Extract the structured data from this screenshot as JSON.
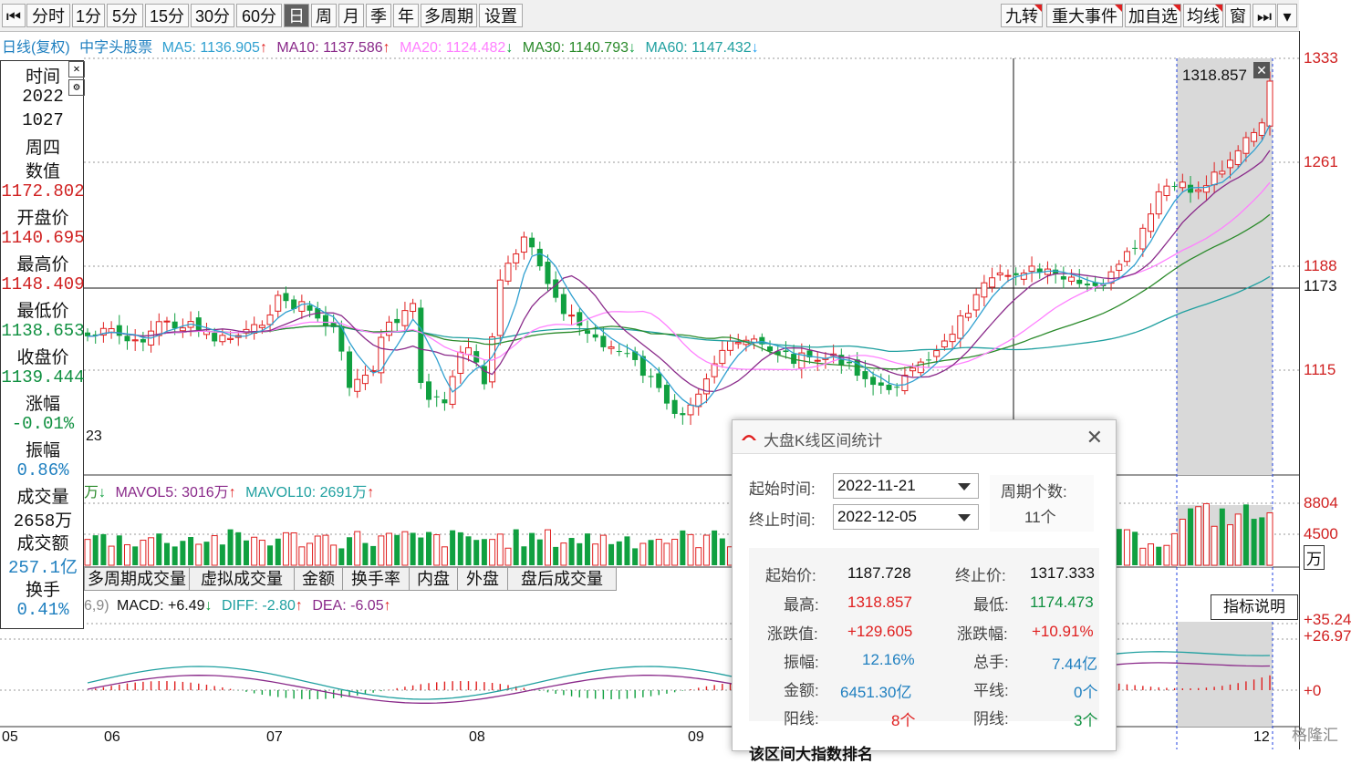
{
  "toolbar": {
    "left": [
      "分时",
      "1分",
      "5分",
      "15分",
      "30分",
      "60分",
      "日",
      "周",
      "月",
      "季",
      "年",
      "多周期",
      "设置"
    ],
    "active": "日",
    "right": [
      "九转",
      "重大事件",
      "加自选",
      "均线",
      "窗"
    ]
  },
  "ma_legend": {
    "name": "日线(复权)",
    "stock": "中字头股票",
    "ma5": "MA5: 1136.905",
    "ma10": "MA10: 1137.586",
    "ma20": "MA20: 1124.482",
    "ma30": "MA30: 1140.793",
    "ma60": "MA60: 1147.432",
    "up": "↑",
    "down": "↓"
  },
  "price_axis": {
    "ticks": [
      "1333",
      "1261",
      "1188",
      "1173",
      "1115"
    ],
    "hover_high": "1318.857",
    "left_fragment": "23"
  },
  "volume_axis": {
    "ticks": [
      "8804",
      "4500"
    ],
    "unit": "万"
  },
  "macd_axis": {
    "ticks": [
      "+35.24",
      "+26.97",
      "+0"
    ]
  },
  "info": {
    "time_label": "时间",
    "year": "2022",
    "date": "1027",
    "weekday": "周四",
    "value_label": "数值",
    "value": "1172.802",
    "open_label": "开盘价",
    "open": "1140.695",
    "high_label": "最高价",
    "high": "1148.409",
    "low_label": "最低价",
    "low": "1138.653",
    "close_label": "收盘价",
    "close": "1139.444",
    "chg_label": "涨幅",
    "chg": "-0.01%",
    "amp_label": "振幅",
    "amp": "0.86%",
    "vol_label": "成交量",
    "vol": "2658万",
    "amt_label": "成交额",
    "amt": "257.1亿",
    "turn_label": "换手",
    "turn": "0.41%"
  },
  "volume_legend": {
    "prefix": "万",
    "mavol5": "MAVOL5: 3016万",
    "mavol10": "MAVOL10: 2691万"
  },
  "volume_tabs": [
    "多周期成交量",
    "虚拟成交量",
    "金额",
    "换手率",
    "内盘",
    "外盘",
    "盘后成交量"
  ],
  "macd_legend": {
    "params": "6,9)",
    "macd": "MACD: +6.49",
    "diff": "DIFF: -2.80",
    "dea": "DEA: -6.05"
  },
  "tip_button": "指标说明",
  "dates": [
    "05",
    "06",
    "07",
    "08",
    "09",
    "12"
  ],
  "dialog": {
    "title": "大盘K线区间统计",
    "start_label": "起始时间:",
    "start_value": "2022-11-21",
    "end_label": "终止时间:",
    "end_value": "2022-12-05",
    "count_label": "周期个数:",
    "count_value": "11个",
    "stats": {
      "open_label": "起始价:",
      "open": "1187.728",
      "close_label": "终止价:",
      "close": "1317.333",
      "high_label": "最高:",
      "high": "1318.857",
      "low_label": "最低:",
      "low": "1174.473",
      "chg_label": "涨跌值:",
      "chg": "+129.605",
      "chgpct_label": "涨跌幅:",
      "chgpct": "+10.91%",
      "amp_label": "振幅:",
      "amp": "12.16%",
      "turn_label": "总手:",
      "turn": "7.44亿",
      "amt_label": "金额:",
      "amt": "6451.30亿",
      "flat_label": "平线:",
      "flat": "0个",
      "up_label": "阳线:",
      "up": "8个",
      "down_label": "阴线:",
      "down": "3个"
    },
    "footer_partial": "该区间大指数排名"
  },
  "watermark": "格隆汇",
  "colors": {
    "up": "#e02020",
    "down": "#10a040",
    "ma5": "#30a0d0",
    "ma10": "#8a2a8a",
    "ma20": "#ff80ff",
    "ma30": "#2a8a2a",
    "ma60": "#20a0a0"
  }
}
